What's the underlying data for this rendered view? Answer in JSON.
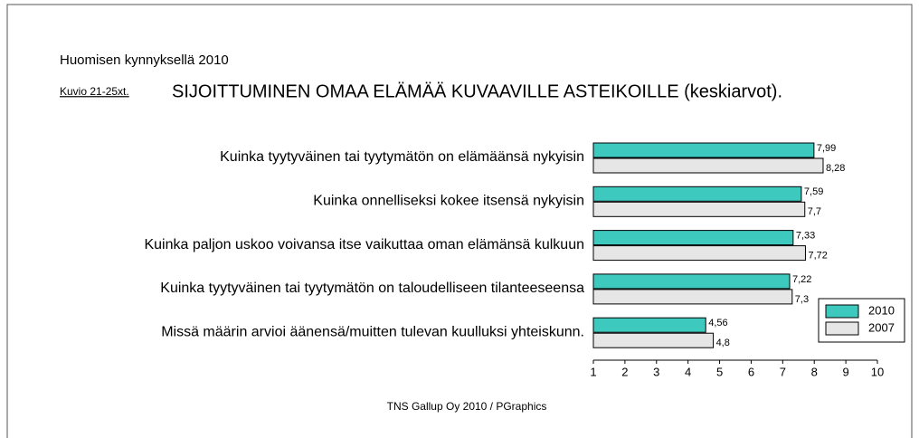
{
  "chart_data": {
    "type": "hbar",
    "header": "Huomisen kynnyksellä 2010",
    "figure_label": "Kuvio 21-25xt.",
    "title": "SIJOITTUMINEN OMAA ELÄMÄÄ KUVAAVILLE ASTEIKOILLE (keskiarvot).",
    "source": "TNS Gallup Oy 2010 / PGraphics",
    "categories": [
      "Kuinka tyytyväinen tai tyytymätön on elämäänsä nykyisin",
      "Kuinka onnelliseksi kokee itsensä nykyisin",
      "Kuinka paljon uskoo voivansa itse vaikuttaa oman elämänsä kulkuun",
      "Kuinka tyytyväinen tai tyytymätön on taloudelliseen tilanteeseensa",
      "Missä määrin arvioi äänensä/muitten tulevan kuulluksi yhteiskunn."
    ],
    "series": [
      {
        "name": "2010",
        "color": "#3ec9bf",
        "values": [
          7.99,
          7.59,
          7.33,
          7.22,
          4.56
        ],
        "value_labels": [
          "7,99",
          "7,59",
          "7,33",
          "7,22",
          "4,56"
        ]
      },
      {
        "name": "2007",
        "color": "#e6e6e6",
        "values": [
          8.28,
          7.7,
          7.72,
          7.3,
          4.8
        ],
        "value_labels": [
          "8,28",
          "7,7",
          "7,72",
          "7,3",
          "4,8"
        ]
      }
    ],
    "xlim": [
      1,
      10
    ],
    "xticks": [
      1,
      2,
      3,
      4,
      5,
      6,
      7,
      8,
      9,
      10
    ],
    "legend": "lower right"
  }
}
